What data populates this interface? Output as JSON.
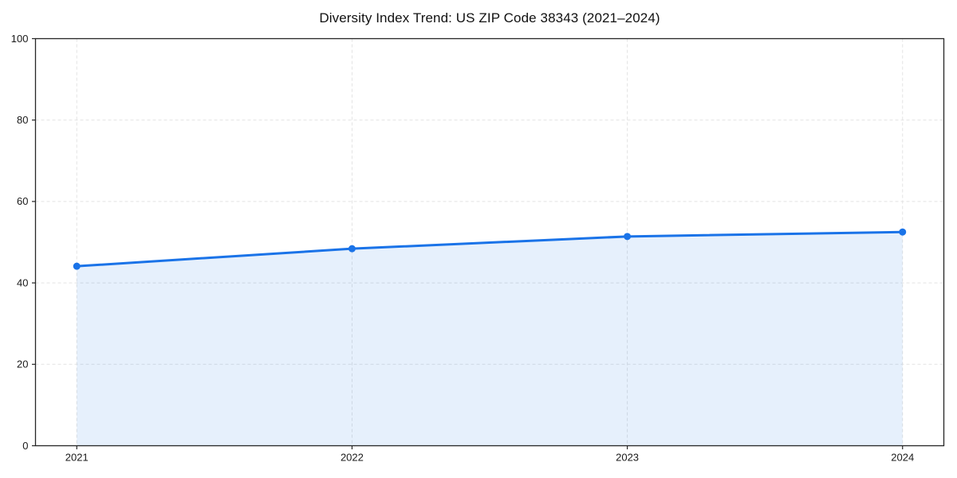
{
  "page": {
    "background_color": "#ffffff"
  },
  "chart_data": {
    "type": "area",
    "title": "Diversity Index Trend: US ZIP Code 38343 (2021–2024)",
    "x": [
      2021,
      2022,
      2023,
      2024
    ],
    "series": [
      {
        "name": "Diversity Index",
        "values": [
          44.1,
          48.4,
          51.4,
          52.5
        ]
      }
    ],
    "xlabel": "",
    "ylabel": "",
    "xlim": [
      2020.85,
      2024.15
    ],
    "ylim": [
      0,
      100
    ],
    "xticks": [
      2021,
      2022,
      2023,
      2024
    ],
    "xtick_labels": [
      "2021",
      "2022",
      "2023",
      "2024"
    ],
    "yticks": [
      0,
      20,
      40,
      60,
      80,
      100
    ],
    "ytick_labels": [
      "0",
      "20",
      "40",
      "60",
      "80",
      "100"
    ],
    "grid": true,
    "grid_style": "dashed",
    "legend": "none",
    "marker": "circle",
    "colors": {
      "line": "#1a73e8",
      "marker": "#1a73e8",
      "fill": "rgba(26,115,232,0.11)",
      "grid": "#e3e3e3",
      "axis": "#262626",
      "tick_label": "#1a1a1a",
      "title": "#111111"
    }
  }
}
